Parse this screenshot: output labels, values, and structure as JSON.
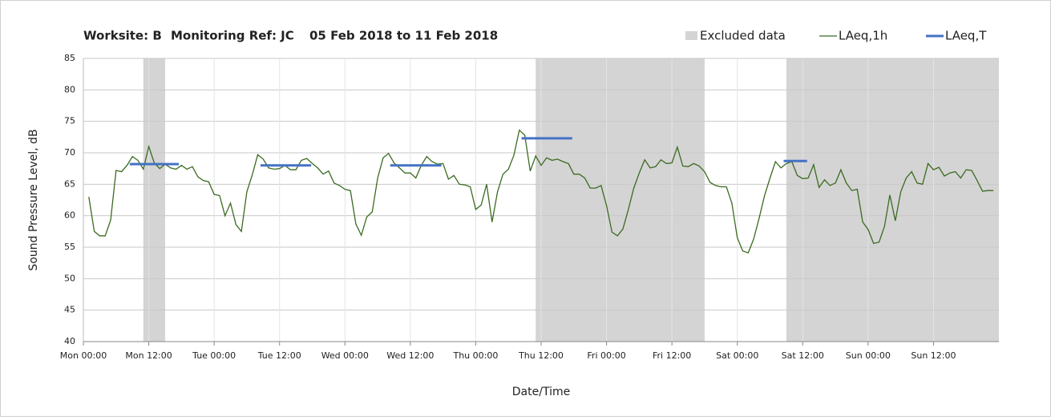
{
  "chart_data": {
    "type": "line",
    "title": [
      "Worksite: B",
      "Monitoring Ref: JC",
      "05 Feb 2018 to 11 Feb 2018"
    ],
    "x_label": "Date/Time",
    "y_label": "Sound Pressure Level, dB",
    "xlim": [
      0,
      168
    ],
    "ylim": [
      40,
      85
    ],
    "yticks": [
      40,
      45,
      50,
      55,
      60,
      65,
      70,
      75,
      80,
      85
    ],
    "xticks": [
      {
        "value": 0,
        "label": "Mon 00:00"
      },
      {
        "value": 12,
        "label": "Mon 12:00"
      },
      {
        "value": 24,
        "label": "Tue 00:00"
      },
      {
        "value": 36,
        "label": "Tue 12:00"
      },
      {
        "value": 48,
        "label": "Wed 00:00"
      },
      {
        "value": 60,
        "label": "Wed 12:00"
      },
      {
        "value": 72,
        "label": "Thu 00:00"
      },
      {
        "value": 84,
        "label": "Thu 12:00"
      },
      {
        "value": 96,
        "label": "Fri 00:00"
      },
      {
        "value": 108,
        "label": "Fri 12:00"
      },
      {
        "value": 120,
        "label": "Sat 00:00"
      },
      {
        "value": 132,
        "label": "Sat 12:00"
      },
      {
        "value": 144,
        "label": "Sun 00:00"
      },
      {
        "value": 156,
        "label": "Sun 12:00"
      }
    ],
    "grid": true,
    "excluded": {
      "name": "Excluded data",
      "color": "#d4d4d4",
      "ranges": [
        [
          11,
          15
        ],
        [
          83,
          114
        ],
        [
          129,
          168
        ]
      ]
    },
    "series": [
      {
        "name": "LAeq,1h",
        "color": "#3b6b20",
        "x": [
          1,
          2,
          3,
          4,
          5,
          6,
          7,
          8,
          9,
          10,
          11,
          12,
          13,
          14,
          15,
          16,
          17,
          18,
          19,
          20,
          21,
          22,
          23,
          24,
          25,
          26,
          27,
          28,
          29,
          30,
          31,
          32,
          33,
          34,
          35,
          36,
          37,
          38,
          39,
          40,
          41,
          42,
          43,
          44,
          45,
          46,
          47,
          48,
          49,
          50,
          51,
          52,
          53,
          54,
          55,
          56,
          57,
          58,
          59,
          60,
          61,
          62,
          63,
          64,
          65,
          66,
          67,
          68,
          69,
          70,
          71,
          72,
          73,
          74,
          75,
          76,
          77,
          78,
          79,
          80,
          81,
          82,
          83,
          84,
          85,
          86,
          87,
          88,
          89,
          90,
          91,
          92,
          93,
          94,
          95,
          96,
          97,
          98,
          99,
          100,
          101,
          102,
          103,
          104,
          105,
          106,
          107,
          108,
          109,
          110,
          111,
          112,
          113,
          114,
          115,
          116,
          117,
          118,
          119,
          120,
          121,
          122,
          123,
          124,
          125,
          126,
          127,
          128,
          129,
          130,
          131,
          132,
          133,
          134,
          135,
          136,
          137,
          138,
          139,
          140,
          141,
          142,
          143,
          144,
          145,
          146,
          147,
          148,
          149,
          150,
          151,
          152,
          153,
          154,
          155,
          156,
          157,
          158,
          159,
          160,
          161,
          162,
          163,
          164,
          165,
          166,
          167
        ],
        "values": [
          63,
          57.5,
          56.8,
          56.8,
          59.3,
          67.2,
          67,
          68,
          69.4,
          68.8,
          67.4,
          71,
          68.4,
          67.5,
          68.2,
          67.6,
          67.4,
          68,
          67.4,
          67.8,
          66.2,
          65.6,
          65.4,
          63.4,
          63.2,
          60,
          62,
          58.6,
          57.5,
          63.8,
          66.5,
          69.7,
          69,
          67.6,
          67.4,
          67.5,
          68,
          67.3,
          67.3,
          68.8,
          69.1,
          68.3,
          67.6,
          66.6,
          67.1,
          65.2,
          64.8,
          64.2,
          64,
          58.7,
          56.9,
          59.8,
          60.6,
          66,
          69.2,
          69.9,
          68.4,
          67.6,
          66.8,
          66.8,
          66,
          68,
          69.4,
          68.6,
          68.2,
          68.3,
          65.8,
          66.4,
          65,
          64.9,
          64.6,
          61,
          61.7,
          65,
          59,
          63.8,
          66.6,
          67.4,
          69.6,
          73.6,
          72.8,
          67.1,
          69.5,
          68,
          69.2,
          68.8,
          69,
          68.6,
          68.3,
          66.6,
          66.6,
          66,
          64.4,
          64.4,
          64.8,
          61.6,
          57.4,
          56.8,
          57.9,
          61,
          64.4,
          66.8,
          68.9,
          67.6,
          67.8,
          68.9,
          68.3,
          68.4,
          70.9,
          67.9,
          67.8,
          68.3,
          67.9,
          67,
          65.3,
          64.8,
          64.6,
          64.6,
          62,
          56.5,
          54.4,
          54.1,
          56.3,
          59.6,
          63.2,
          66,
          68.6,
          67.6,
          68.3,
          68.6,
          66.4,
          65.9,
          66,
          68.1,
          64.5,
          65.7,
          64.8,
          65.2,
          67.3,
          65.2,
          64,
          64.2,
          59,
          57.8,
          55.6,
          55.8,
          58.3,
          63.3,
          59.2,
          63.8,
          66,
          67,
          65.2,
          65,
          68.3,
          67.3,
          67.7,
          66.3,
          66.8,
          67,
          66,
          67.3,
          67.2,
          65.6,
          63.9,
          64,
          64
        ]
      },
      {
        "name": "LAeq,T",
        "color": "#4472c4",
        "kind": "segments",
        "x": [
          [
            8.5,
            17.5
          ],
          [
            32.5,
            41.8
          ],
          [
            56.3,
            65.7
          ],
          [
            80.4,
            89.7
          ],
          [
            128.5,
            132.8
          ]
        ],
        "values": [
          68.2,
          68.0,
          68.0,
          72.3,
          68.7
        ]
      }
    ]
  }
}
